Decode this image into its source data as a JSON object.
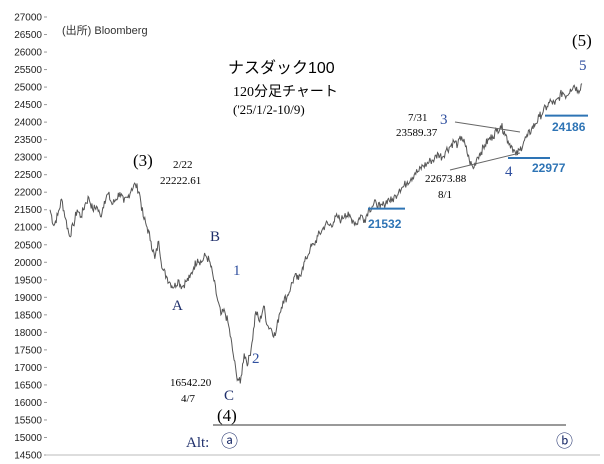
{
  "chart_data": {
    "type": "line",
    "title": "ナスダック100",
    "subtitle": "120分足チャート",
    "period": "('25/1/2-10/9)",
    "source": "(出所) Bloomberg",
    "ylim": [
      14500,
      27000
    ],
    "y_ticks": [
      14500,
      15000,
      15500,
      16000,
      16500,
      17000,
      17500,
      18000,
      18500,
      19000,
      19500,
      20000,
      20500,
      21000,
      21500,
      22000,
      22500,
      23000,
      23500,
      24000,
      24500,
      25000,
      25500,
      26000,
      26500,
      27000
    ],
    "y_tick_labels": [
      "14500",
      "15000",
      "15500",
      "16000",
      "16500",
      "17000",
      "17500",
      "18000",
      "18500",
      "19000",
      "19500",
      "20000",
      "20500",
      "21000",
      "21500",
      "22000",
      "22500",
      "23000",
      "23500",
      "24000",
      "24500",
      "25000",
      "25500",
      "26000",
      "26500",
      "27000"
    ],
    "series": [
      {
        "values": [
          21500,
          21050,
          21350,
          21800,
          21250,
          20750,
          21050,
          21500,
          21300,
          21650,
          21850,
          21500,
          21600,
          21300,
          21750,
          21950,
          21650,
          21800,
          22000,
          21700,
          21850,
          22100,
          22222.61,
          22000,
          21300,
          21000,
          20600,
          20100,
          20600,
          19800,
          19600,
          19400,
          19300,
          19500,
          19300,
          19450,
          19550,
          19850,
          20100,
          20000,
          20200,
          20050,
          19600,
          19000,
          18500,
          18600,
          18200,
          17500,
          16800,
          16542.2,
          17400,
          17100,
          17700,
          18600,
          18300,
          18750,
          18200,
          18100,
          17900,
          18500,
          18900,
          19000,
          19300,
          19600,
          19500,
          19850,
          20100,
          20400,
          20500,
          20750,
          20900,
          21100,
          21050,
          21150,
          21300,
          21200,
          21400,
          21300,
          21200,
          21100,
          21350,
          21200,
          21500,
          21600,
          21700,
          21550,
          21650,
          21800,
          21750,
          21900,
          22100,
          22150,
          22300,
          22400,
          22550,
          22600,
          22750,
          22800,
          22900,
          22950,
          23100,
          23000,
          23200,
          23300,
          23450,
          23350,
          23589.37,
          23300,
          22900,
          22673.88,
          23000,
          23150,
          23350,
          23500,
          23600,
          23750,
          23900,
          23750,
          23450,
          23300,
          23050,
          23200,
          23450,
          23600,
          23800,
          23950,
          24150,
          24300,
          24450,
          24600,
          24500,
          24700,
          24850,
          24750,
          24950,
          25050,
          24900,
          25100
        ]
      }
    ],
    "annotations": {
      "wave_3": "(3)",
      "high_date": "2/22",
      "high_value": "22222.61",
      "wave_a": "A",
      "wave_b": "B",
      "wave_c": "C",
      "wave_1": "1",
      "wave_2": "2",
      "low_value": "16542.20",
      "low_date": "4/7",
      "wave_4_paren": "(4)",
      "alt_label": "Alt:",
      "alt_a": "ⓐ",
      "alt_b": "ⓑ",
      "level_21532": "21532",
      "date_731": "7/31",
      "value_731": "23589.37",
      "wave_3_small": "3",
      "value_81": "22673.88",
      "date_81": "8/1",
      "wave_4_small": "4",
      "level_22977": "22977",
      "level_24186": "24186",
      "wave_5_paren": "(5)",
      "wave_5": "5"
    },
    "colors": {
      "price_line": "#555555",
      "support_line": "#2e74b5",
      "support_text": "#2e74b5",
      "wave_letter": "#1f2f6b",
      "wave_number_blue": "#2f4f9f",
      "annotation_black": "#000000",
      "trendline": "#666666"
    }
  }
}
